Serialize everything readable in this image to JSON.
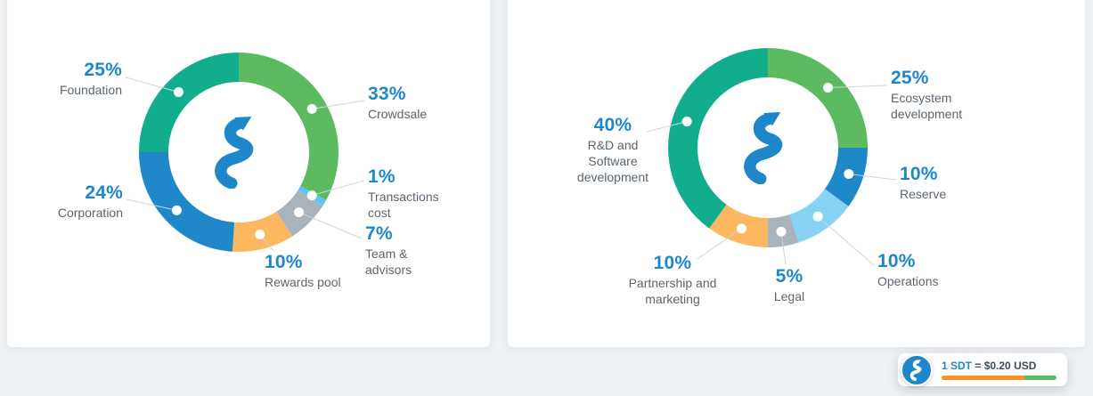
{
  "colors": {
    "background": "#eef1f4",
    "card": "#ffffff",
    "pct_text": "#1e87c9",
    "label_text": "#5b6670",
    "leader_line": "#cdd6dc",
    "logo_blue": "#1e87c9",
    "dot": "#ffffff"
  },
  "chart_data": [
    {
      "type": "pie",
      "style": "donut",
      "title": "",
      "legend_position": "callout-labels",
      "segments": [
        {
          "key": "crowdsale",
          "pct": 33,
          "pct_label": "33%",
          "label": "Crowdsale",
          "label_lines": [
            "Crowdsale"
          ],
          "color": "#5cba61"
        },
        {
          "key": "transactions-cost",
          "pct": 1,
          "pct_label": "1%",
          "label": "Transactions cost",
          "label_lines": [
            "Transactions",
            "cost"
          ],
          "color": "#5bc5f2"
        },
        {
          "key": "team-advisors",
          "pct": 7,
          "pct_label": "7%",
          "label": "Team & advisors",
          "label_lines": [
            "Team &",
            "advisors"
          ],
          "color": "#a8b3bc"
        },
        {
          "key": "rewards-pool",
          "pct": 10,
          "pct_label": "10%",
          "label": "Rewards pool",
          "label_lines": [
            "Rewards pool"
          ],
          "color": "#fbb860"
        },
        {
          "key": "corporation",
          "pct": 24,
          "pct_label": "24%",
          "label": "Corporation",
          "label_lines": [
            "Corporation"
          ],
          "color": "#1e88c8"
        },
        {
          "key": "foundation",
          "pct": 25,
          "pct_label": "25%",
          "label": "Foundation",
          "label_lines": [
            "Foundation"
          ],
          "color": "#12ad8d"
        }
      ]
    },
    {
      "type": "pie",
      "style": "donut",
      "title": "",
      "legend_position": "callout-labels",
      "segments": [
        {
          "key": "ecosystem-development",
          "pct": 25,
          "pct_label": "25%",
          "label": "Ecosystem development",
          "label_lines": [
            "Ecosystem",
            "development"
          ],
          "color": "#5cba61"
        },
        {
          "key": "reserve",
          "pct": 10,
          "pct_label": "10%",
          "label": "Reserve",
          "label_lines": [
            "Reserve"
          ],
          "color": "#1e88c8"
        },
        {
          "key": "operations",
          "pct": 10,
          "pct_label": "10%",
          "label": "Operations",
          "label_lines": [
            "Operations"
          ],
          "color": "#86d3f5"
        },
        {
          "key": "legal",
          "pct": 5,
          "pct_label": "5%",
          "label": "Legal",
          "label_lines": [
            "Legal"
          ],
          "color": "#a8b3bc"
        },
        {
          "key": "partnership-marketing",
          "pct": 10,
          "pct_label": "10%",
          "label": "Partnership and marketing",
          "label_lines": [
            "Partnership and",
            "marketing"
          ],
          "color": "#fbb860"
        },
        {
          "key": "rnd-software",
          "pct": 40,
          "pct_label": "40%",
          "label": "R&D and Software development",
          "label_lines": [
            "R&D and",
            "Software",
            "development"
          ],
          "color": "#12ad8d"
        }
      ]
    }
  ],
  "price_widget": {
    "pair": "1 SDT",
    "value": "= $0.20 USD",
    "bar_colors": [
      "#f7941d",
      "#5cba61"
    ]
  }
}
